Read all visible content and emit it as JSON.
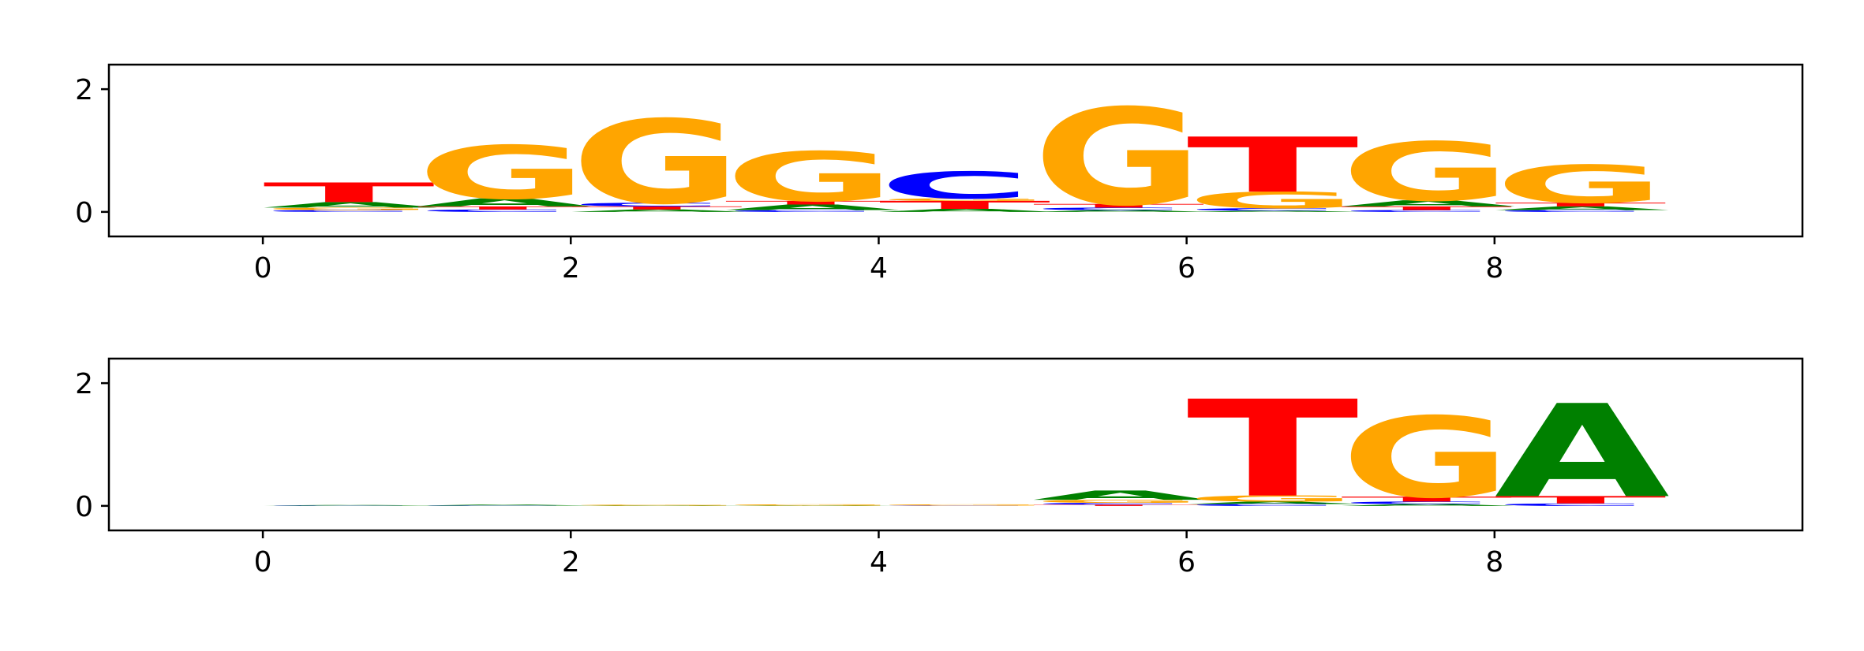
{
  "colors": {
    "A": "#008000",
    "C": "#0000ff",
    "G": "#ffa500",
    "T": "#ff0000"
  },
  "chart_data": [
    {
      "type": "sequence-logo",
      "xlim": [
        -1,
        10
      ],
      "ylim": [
        -0.4,
        2.4
      ],
      "xticks": [
        0,
        2,
        4,
        6,
        8
      ],
      "yticks": [
        0,
        2
      ],
      "positions": [
        {
          "pos": 0,
          "stack": [
            {
              "base": "C",
              "height": 0.03
            },
            {
              "base": "G",
              "height": 0.04
            },
            {
              "base": "A",
              "height": 0.09
            },
            {
              "base": "T",
              "height": 0.32
            }
          ]
        },
        {
          "pos": 1,
          "stack": [
            {
              "base": "C",
              "height": 0.04
            },
            {
              "base": "T",
              "height": 0.05
            },
            {
              "base": "A",
              "height": 0.13
            },
            {
              "base": "G",
              "height": 0.87
            }
          ]
        },
        {
          "pos": 2,
          "stack": [
            {
              "base": "A",
              "height": 0.04
            },
            {
              "base": "T",
              "height": 0.05
            },
            {
              "base": "C",
              "height": 0.06
            },
            {
              "base": "G",
              "height": 1.37
            }
          ]
        },
        {
          "pos": 3,
          "stack": [
            {
              "base": "C",
              "height": 0.03
            },
            {
              "base": "A",
              "height": 0.09
            },
            {
              "base": "T",
              "height": 0.06
            },
            {
              "base": "G",
              "height": 0.81
            }
          ]
        },
        {
          "pos": 4,
          "stack": [
            {
              "base": "A",
              "height": 0.05
            },
            {
              "base": "T",
              "height": 0.13
            },
            {
              "base": "G",
              "height": 0.04
            },
            {
              "base": "C",
              "height": 0.44
            }
          ]
        },
        {
          "pos": 5,
          "stack": [
            {
              "base": "A",
              "height": 0.03
            },
            {
              "base": "C",
              "height": 0.04
            },
            {
              "base": "T",
              "height": 0.06
            },
            {
              "base": "G",
              "height": 1.58
            }
          ]
        },
        {
          "pos": 6,
          "stack": [
            {
              "base": "A",
              "height": 0.02
            },
            {
              "base": "C",
              "height": 0.04
            },
            {
              "base": "G",
              "height": 0.27
            },
            {
              "base": "T",
              "height": 0.9
            }
          ]
        },
        {
          "pos": 7,
          "stack": [
            {
              "base": "C",
              "height": 0.03
            },
            {
              "base": "T",
              "height": 0.06
            },
            {
              "base": "A",
              "height": 0.1
            },
            {
              "base": "G",
              "height": 0.96
            }
          ]
        },
        {
          "pos": 8,
          "stack": [
            {
              "base": "C",
              "height": 0.03
            },
            {
              "base": "A",
              "height": 0.06
            },
            {
              "base": "T",
              "height": 0.06
            },
            {
              "base": "G",
              "height": 0.62
            }
          ]
        }
      ]
    },
    {
      "type": "sequence-logo",
      "xlim": [
        -1,
        10
      ],
      "ylim": [
        -0.4,
        2.4
      ],
      "xticks": [
        0,
        2,
        4,
        6,
        8
      ],
      "yticks": [
        0,
        2
      ],
      "positions": [
        {
          "pos": 0,
          "stack": [
            {
              "base": "C",
              "height": 0.005
            },
            {
              "base": "A",
              "height": 0.01
            }
          ]
        },
        {
          "pos": 1,
          "stack": [
            {
              "base": "C",
              "height": 0.005
            },
            {
              "base": "A",
              "height": 0.015
            }
          ]
        },
        {
          "pos": 2,
          "stack": [
            {
              "base": "A",
              "height": 0.005
            },
            {
              "base": "G",
              "height": 0.015
            }
          ]
        },
        {
          "pos": 3,
          "stack": [
            {
              "base": "A",
              "height": 0.005
            },
            {
              "base": "G",
              "height": 0.02
            }
          ]
        },
        {
          "pos": 4,
          "stack": [
            {
              "base": "C",
              "height": 0.005
            },
            {
              "base": "G",
              "height": 0.02
            }
          ]
        },
        {
          "pos": 5,
          "stack": [
            {
              "base": "T",
              "height": 0.02
            },
            {
              "base": "C",
              "height": 0.03
            },
            {
              "base": "G",
              "height": 0.05
            },
            {
              "base": "A",
              "height": 0.15
            }
          ]
        },
        {
          "pos": 6,
          "stack": [
            {
              "base": "C",
              "height": 0.03
            },
            {
              "base": "A",
              "height": 0.04
            },
            {
              "base": "G",
              "height": 0.1
            },
            {
              "base": "T",
              "height": 1.58
            }
          ]
        },
        {
          "pos": 7,
          "stack": [
            {
              "base": "A",
              "height": 0.03
            },
            {
              "base": "C",
              "height": 0.04
            },
            {
              "base": "T",
              "height": 0.08
            },
            {
              "base": "G",
              "height": 1.32
            }
          ]
        },
        {
          "pos": 8,
          "stack": [
            {
              "base": "C",
              "height": 0.04
            },
            {
              "base": "T",
              "height": 0.12
            },
            {
              "base": "A",
              "height": 1.52
            }
          ]
        }
      ]
    }
  ]
}
